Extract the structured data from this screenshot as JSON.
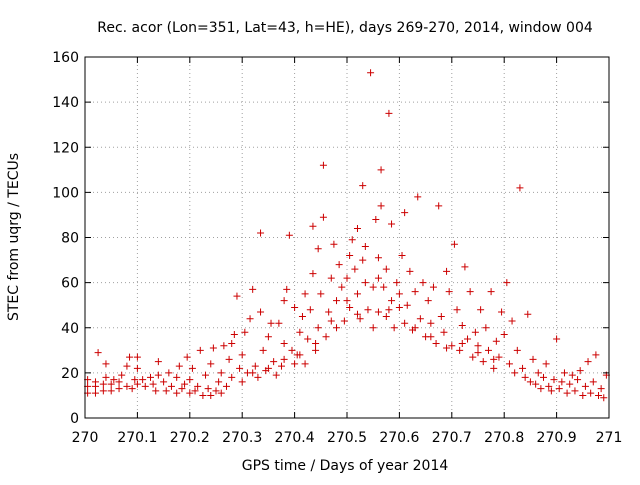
{
  "chart_data": {
    "type": "scatter",
    "title": "Rec. acor (Lon=351, Lat=43, h=HE), days 269-270, 2014, window 004",
    "xlabel": "GPS time / Days of year 2014",
    "ylabel": "STEC from uqrg / TECUs",
    "xlim": [
      270,
      271
    ],
    "ylim": [
      0,
      160
    ],
    "x_ticks": [
      270,
      270.1,
      270.2,
      270.3,
      270.4,
      270.5,
      270.6,
      270.7,
      270.8,
      270.9,
      271
    ],
    "x_tick_labels": [
      "270",
      "270.1",
      "270.2",
      "270.3",
      "270.4",
      "270.5",
      "270.6",
      "270.7",
      "270.8",
      "270.9",
      "271"
    ],
    "y_ticks": [
      0,
      20,
      40,
      60,
      80,
      100,
      120,
      140,
      160
    ],
    "y_tick_labels": [
      "0",
      "20",
      "40",
      "60",
      "80",
      "100",
      "120",
      "140",
      "160"
    ],
    "grid": true,
    "marker": "+",
    "color": "#cc0000",
    "series": [
      {
        "name": "STEC",
        "points": [
          [
            270.005,
            11
          ],
          [
            270.005,
            14
          ],
          [
            270.005,
            17
          ],
          [
            270.02,
            11
          ],
          [
            270.02,
            14
          ],
          [
            270.02,
            16
          ],
          [
            270.025,
            29
          ],
          [
            270.035,
            12
          ],
          [
            270.035,
            15
          ],
          [
            270.04,
            18
          ],
          [
            270.04,
            24
          ],
          [
            270.05,
            12
          ],
          [
            270.05,
            15
          ],
          [
            270.055,
            17
          ],
          [
            270.065,
            13
          ],
          [
            270.065,
            16
          ],
          [
            270.07,
            19
          ],
          [
            270.08,
            14
          ],
          [
            270.08,
            23
          ],
          [
            270.085,
            27
          ],
          [
            270.09,
            13
          ],
          [
            270.095,
            17
          ],
          [
            270.1,
            15
          ],
          [
            270.1,
            22
          ],
          [
            270.1,
            27
          ],
          [
            270.11,
            17
          ],
          [
            270.115,
            14
          ],
          [
            270.125,
            18
          ],
          [
            270.13,
            15
          ],
          [
            270.135,
            12
          ],
          [
            270.14,
            19
          ],
          [
            270.14,
            25
          ],
          [
            270.15,
            16
          ],
          [
            270.155,
            12
          ],
          [
            270.16,
            20
          ],
          [
            270.165,
            14
          ],
          [
            270.175,
            11
          ],
          [
            270.175,
            18
          ],
          [
            270.18,
            23
          ],
          [
            270.185,
            13
          ],
          [
            270.19,
            15
          ],
          [
            270.195,
            27
          ],
          [
            270.2,
            11
          ],
          [
            270.2,
            17
          ],
          [
            270.205,
            22
          ],
          [
            270.21,
            12
          ],
          [
            270.215,
            14
          ],
          [
            270.22,
            30
          ],
          [
            270.225,
            10
          ],
          [
            270.23,
            19
          ],
          [
            270.235,
            13
          ],
          [
            270.24,
            10
          ],
          [
            270.24,
            24
          ],
          [
            270.245,
            31
          ],
          [
            270.25,
            12
          ],
          [
            270.255,
            16
          ],
          [
            270.26,
            11
          ],
          [
            270.26,
            20
          ],
          [
            270.265,
            32
          ],
          [
            270.27,
            14
          ],
          [
            270.275,
            26
          ],
          [
            270.28,
            18
          ],
          [
            270.28,
            33
          ],
          [
            270.285,
            37
          ],
          [
            270.29,
            54
          ],
          [
            270.295,
            22
          ],
          [
            270.3,
            16
          ],
          [
            270.3,
            28
          ],
          [
            270.305,
            38
          ],
          [
            270.31,
            20
          ],
          [
            270.315,
            44
          ],
          [
            270.32,
            57
          ],
          [
            270.325,
            23
          ],
          [
            270.33,
            18
          ],
          [
            270.335,
            47
          ],
          [
            270.335,
            82
          ],
          [
            270.34,
            30
          ],
          [
            270.345,
            21
          ],
          [
            270.35,
            36
          ],
          [
            270.355,
            42
          ],
          [
            270.36,
            25
          ],
          [
            270.365,
            19
          ],
          [
            270.37,
            42
          ],
          [
            270.375,
            23
          ],
          [
            270.38,
            33
          ],
          [
            270.38,
            52
          ],
          [
            270.385,
            57
          ],
          [
            270.39,
            81
          ],
          [
            270.395,
            30
          ],
          [
            270.4,
            24
          ],
          [
            270.4,
            49
          ],
          [
            270.405,
            28
          ],
          [
            270.41,
            38
          ],
          [
            270.415,
            45
          ],
          [
            270.42,
            55
          ],
          [
            270.42,
            24
          ],
          [
            270.425,
            35
          ],
          [
            270.43,
            48
          ],
          [
            270.435,
            64
          ],
          [
            270.435,
            85
          ],
          [
            270.44,
            30
          ],
          [
            270.445,
            40
          ],
          [
            270.445,
            75
          ],
          [
            270.45,
            55
          ],
          [
            270.455,
            89
          ],
          [
            270.455,
            112
          ],
          [
            270.46,
            36
          ],
          [
            270.465,
            47
          ],
          [
            270.47,
            62
          ],
          [
            270.475,
            77
          ],
          [
            270.48,
            40
          ],
          [
            270.48,
            52
          ],
          [
            270.485,
            68
          ],
          [
            270.49,
            58
          ],
          [
            270.495,
            43
          ],
          [
            270.5,
            62
          ],
          [
            270.505,
            49
          ],
          [
            270.505,
            72
          ],
          [
            270.51,
            79
          ],
          [
            270.515,
            66
          ],
          [
            270.52,
            55
          ],
          [
            270.52,
            84
          ],
          [
            270.525,
            44
          ],
          [
            270.53,
            103
          ],
          [
            270.535,
            60
          ],
          [
            270.535,
            76
          ],
          [
            270.54,
            48
          ],
          [
            270.545,
            153
          ],
          [
            270.55,
            58
          ],
          [
            270.555,
            88
          ],
          [
            270.56,
            47
          ],
          [
            270.56,
            71
          ],
          [
            270.565,
            94
          ],
          [
            270.565,
            110
          ],
          [
            270.57,
            58
          ],
          [
            270.575,
            45
          ],
          [
            270.575,
            66
          ],
          [
            270.58,
            135
          ],
          [
            270.585,
            52
          ],
          [
            270.585,
            86
          ],
          [
            270.59,
            40
          ],
          [
            270.595,
            60
          ],
          [
            270.6,
            55
          ],
          [
            270.605,
            72
          ],
          [
            270.61,
            91
          ],
          [
            270.61,
            42
          ],
          [
            270.615,
            50
          ],
          [
            270.62,
            65
          ],
          [
            270.625,
            39
          ],
          [
            270.63,
            56
          ],
          [
            270.635,
            98
          ],
          [
            270.64,
            44
          ],
          [
            270.645,
            60
          ],
          [
            270.65,
            36
          ],
          [
            270.655,
            52
          ],
          [
            270.66,
            42
          ],
          [
            270.665,
            58
          ],
          [
            270.67,
            33
          ],
          [
            270.675,
            94
          ],
          [
            270.68,
            45
          ],
          [
            270.685,
            38
          ],
          [
            270.69,
            65
          ],
          [
            270.695,
            56
          ],
          [
            270.7,
            32
          ],
          [
            270.705,
            77
          ],
          [
            270.71,
            48
          ],
          [
            270.715,
            30
          ],
          [
            270.72,
            41
          ],
          [
            270.725,
            67
          ],
          [
            270.73,
            35
          ],
          [
            270.735,
            56
          ],
          [
            270.74,
            27
          ],
          [
            270.745,
            38
          ],
          [
            270.75,
            32
          ],
          [
            270.755,
            48
          ],
          [
            270.76,
            25
          ],
          [
            270.765,
            40
          ],
          [
            270.77,
            30
          ],
          [
            270.775,
            56
          ],
          [
            270.78,
            22
          ],
          [
            270.785,
            34
          ],
          [
            270.79,
            27
          ],
          [
            270.795,
            47
          ],
          [
            270.8,
            37
          ],
          [
            270.805,
            60
          ],
          [
            270.81,
            24
          ],
          [
            270.815,
            43
          ],
          [
            270.82,
            20
          ],
          [
            270.825,
            30
          ],
          [
            270.83,
            102
          ],
          [
            270.835,
            22
          ],
          [
            270.84,
            18
          ],
          [
            270.845,
            46
          ],
          [
            270.85,
            16
          ],
          [
            270.855,
            26
          ],
          [
            270.86,
            15
          ],
          [
            270.865,
            20
          ],
          [
            270.87,
            13
          ],
          [
            270.875,
            18
          ],
          [
            270.88,
            24
          ],
          [
            270.885,
            14
          ],
          [
            270.89,
            12
          ],
          [
            270.895,
            17
          ],
          [
            270.9,
            35
          ],
          [
            270.905,
            13
          ],
          [
            270.91,
            16
          ],
          [
            270.915,
            20
          ],
          [
            270.92,
            11
          ],
          [
            270.925,
            15
          ],
          [
            270.93,
            19
          ],
          [
            270.935,
            12
          ],
          [
            270.94,
            17
          ],
          [
            270.945,
            21
          ],
          [
            270.95,
            10
          ],
          [
            270.955,
            14
          ],
          [
            270.96,
            25
          ],
          [
            270.965,
            11
          ],
          [
            270.97,
            16
          ],
          [
            270.975,
            28
          ],
          [
            270.98,
            10
          ],
          [
            270.985,
            13
          ],
          [
            270.99,
            9
          ],
          [
            270.995,
            19
          ],
          [
            270.56,
            62
          ],
          [
            270.53,
            70
          ],
          [
            270.5,
            52
          ],
          [
            270.47,
            43
          ],
          [
            270.44,
            33
          ],
          [
            270.6,
            49
          ],
          [
            270.63,
            40
          ],
          [
            270.66,
            36
          ],
          [
            270.69,
            31
          ],
          [
            270.41,
            28
          ],
          [
            270.38,
            26
          ],
          [
            270.72,
            33
          ],
          [
            270.75,
            29
          ],
          [
            270.35,
            22
          ],
          [
            270.32,
            20
          ],
          [
            270.78,
            26
          ],
          [
            270.52,
            46
          ],
          [
            270.58,
            48
          ],
          [
            270.55,
            40
          ]
        ]
      }
    ]
  }
}
